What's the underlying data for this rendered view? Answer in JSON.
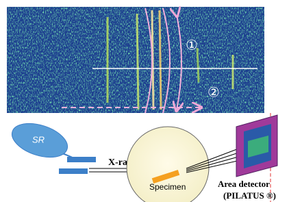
{
  "labels": {
    "circle_1": "①",
    "circle_2": "②",
    "source": "SR",
    "beam": "X-ray",
    "specimen": "Specimen",
    "detector": "Area detector",
    "detector_model": "(PILATUS ®)"
  }
}
